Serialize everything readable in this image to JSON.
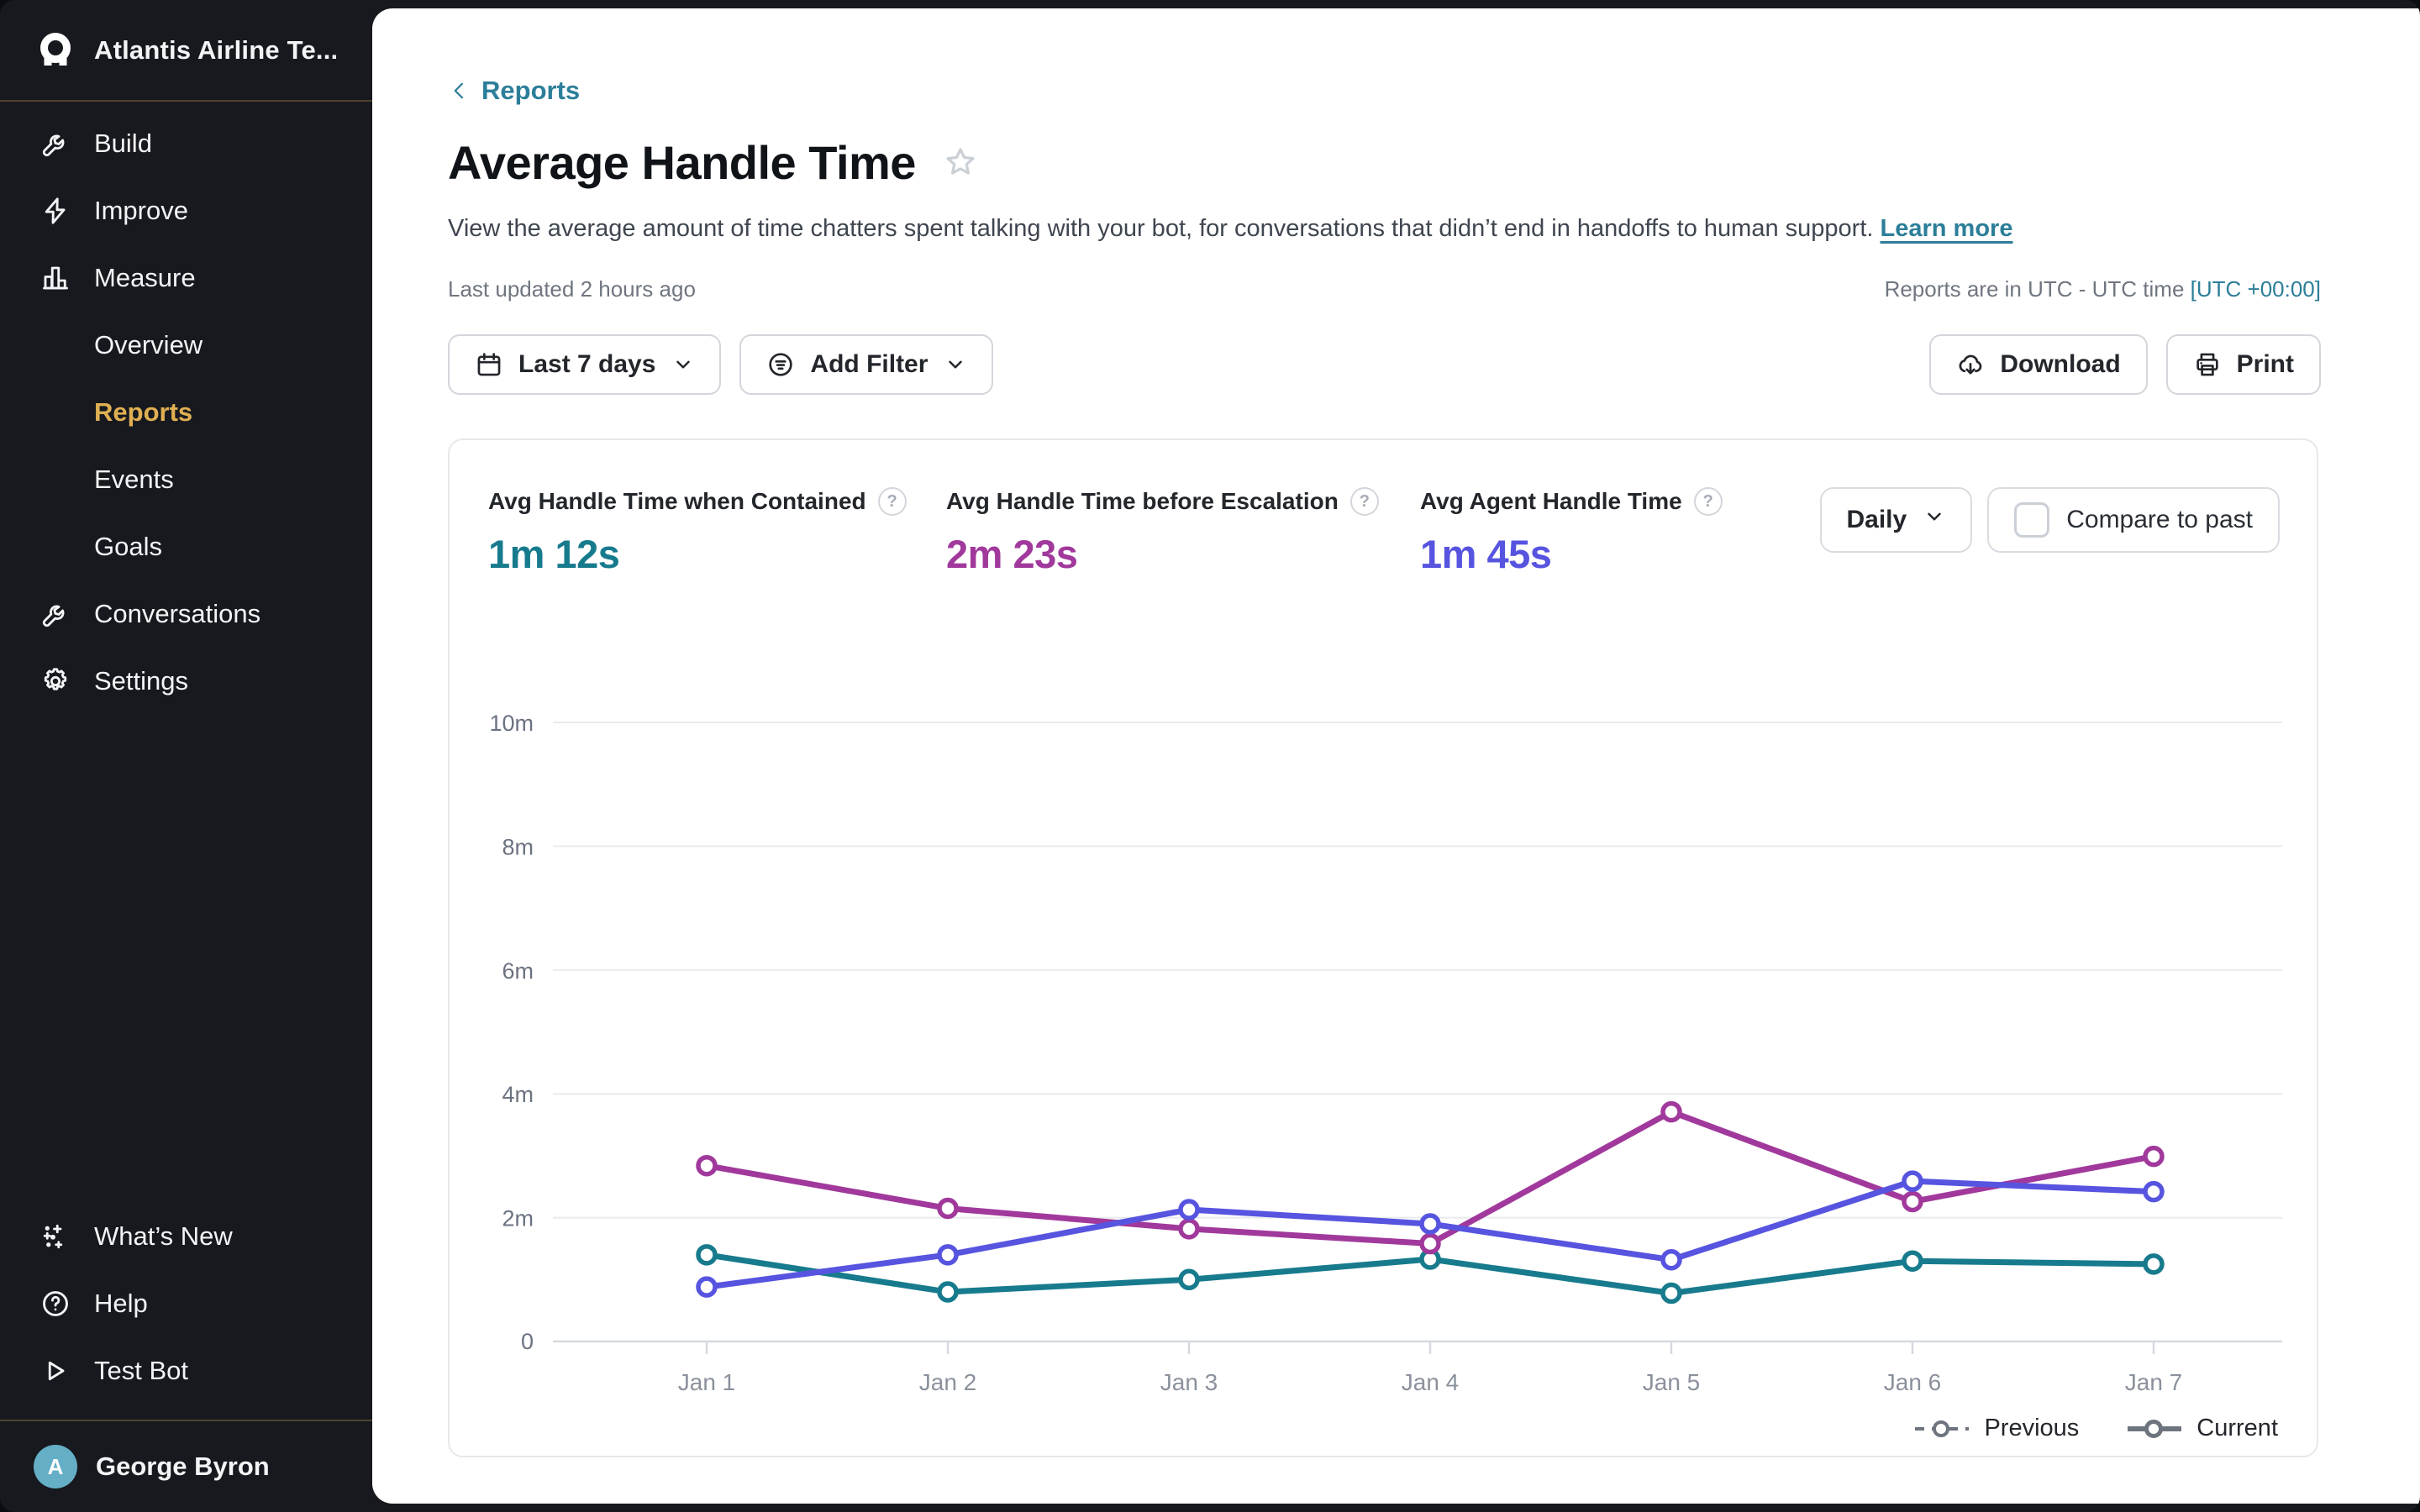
{
  "sidebar": {
    "team_name": "Atlantis Airline Te...",
    "nav": [
      {
        "label": "Build",
        "icon": "wrench-icon"
      },
      {
        "label": "Improve",
        "icon": "lightning-icon"
      },
      {
        "label": "Measure",
        "icon": "bar-chart-icon"
      },
      {
        "label": "Overview",
        "sub": true
      },
      {
        "label": "Reports",
        "sub": true,
        "active": true
      },
      {
        "label": "Events",
        "sub": true
      },
      {
        "label": "Goals",
        "sub": true
      },
      {
        "label": "Conversations",
        "icon": "wrench-icon"
      },
      {
        "label": "Settings",
        "icon": "gear-icon"
      }
    ],
    "footer_nav": [
      {
        "label": "What’s New",
        "icon": "sparkles-icon"
      },
      {
        "label": "Help",
        "icon": "help-circle-icon"
      },
      {
        "label": "Test Bot",
        "icon": "play-icon"
      }
    ],
    "user": {
      "name": "George Byron",
      "avatar_initial": "A",
      "avatar_color": "#64AEC6"
    },
    "active_color": "#DFAF52"
  },
  "header": {
    "back_link": "Reports",
    "title": "Average Handle Time",
    "description": "View the average amount of time chatters spent talking with your bot, for conversations that didn’t end in handoffs to human support.",
    "learn_more": "Learn more",
    "last_updated": "Last updated 2 hours ago",
    "timezone_note": "Reports are in UTC - UTC time",
    "timezone_value": "[UTC +00:00]"
  },
  "toolbar": {
    "date_range": "Last 7 days",
    "add_filter": "Add Filter",
    "download": "Download",
    "print": "Print"
  },
  "panel": {
    "help_glyph": "?",
    "stats": [
      {
        "label": "Avg Handle Time when Contained",
        "value": "1m 12s",
        "color": "#177B8D"
      },
      {
        "label": "Avg Handle Time before Escalation",
        "value": "2m 23s",
        "color": "#A1399C"
      },
      {
        "label": "Avg Agent Handle Time",
        "value": "1m 45s",
        "color": "#5754E0"
      }
    ],
    "granularity": "Daily",
    "compare_label": "Compare to past",
    "compare_checked": false
  },
  "chart_data": {
    "type": "line",
    "x": [
      "Jan 1",
      "Jan 2",
      "Jan 3",
      "Jan 4",
      "Jan 5",
      "Jan 6",
      "Jan 7"
    ],
    "unit": "minutes",
    "ylim": [
      0,
      10
    ],
    "ytick_values": [
      10,
      8,
      6,
      4,
      2
    ],
    "ytick_suffix": "m",
    "ytick_zero_label": "0",
    "grid": true,
    "legend_position": "bottom-right",
    "series": [
      {
        "name": "Avg Handle Time when Contained",
        "color": "#177B8D",
        "values": [
          1.4,
          0.8,
          1.0,
          1.33,
          0.78,
          1.3,
          1.25
        ]
      },
      {
        "name": "Avg Handle Time before Escalation",
        "color": "#A1399C",
        "values": [
          2.84,
          2.15,
          1.82,
          1.58,
          3.71,
          2.26,
          2.99
        ]
      },
      {
        "name": "Avg Agent Handle Time",
        "color": "#5754E0",
        "values": [
          0.88,
          1.4,
          2.13,
          1.9,
          1.32,
          2.59,
          2.42
        ]
      }
    ],
    "legend": [
      {
        "label": "Previous",
        "style": "dashed"
      },
      {
        "label": "Current",
        "style": "solid"
      }
    ]
  }
}
